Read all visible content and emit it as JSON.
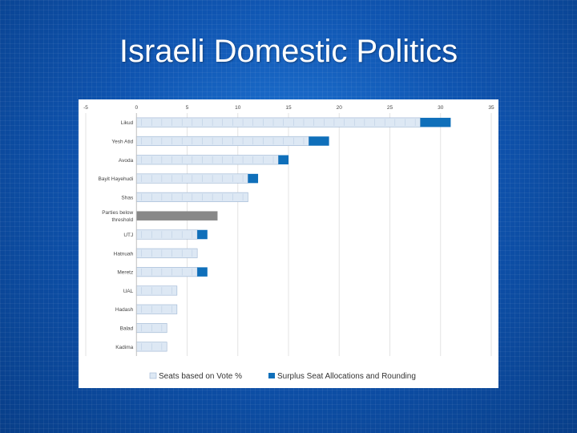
{
  "slide": {
    "title": "Israeli Domestic Politics"
  },
  "chart_data": {
    "type": "bar",
    "orientation": "horizontal",
    "stacked": true,
    "xlim": [
      -5,
      35
    ],
    "xticks": [
      "-5",
      "0",
      "5",
      "10",
      "15",
      "20",
      "25",
      "30",
      "35"
    ],
    "grid": true,
    "legend_position": "bottom",
    "categories": [
      "Likud",
      "Yesh Atid",
      "Avoda",
      "Bayit Hayehudi",
      "Shas",
      "Parties below threshold",
      "UTJ",
      "Hatnuah",
      "Meretz",
      "UAL",
      "Hadash",
      "Balad",
      "Kadima"
    ],
    "series": [
      {
        "name": "Seats based on Vote %",
        "values": [
          28,
          17,
          14,
          11,
          11,
          0,
          6,
          6,
          6,
          4,
          4,
          3,
          3
        ]
      },
      {
        "name": "Surplus Seat Allocations and Rounding",
        "values": [
          3,
          2,
          1,
          1,
          0,
          0,
          1,
          0,
          1,
          0,
          0,
          0,
          0
        ]
      },
      {
        "values": [
          0,
          0,
          0,
          0,
          0,
          8,
          0,
          0,
          0,
          0,
          0,
          0,
          0
        ]
      }
    ],
    "colors": {
      "vote": "#dde8f4",
      "vote_border": "#9cb4d2",
      "surplus": "#0f6fba",
      "threshold": "#888888"
    }
  }
}
